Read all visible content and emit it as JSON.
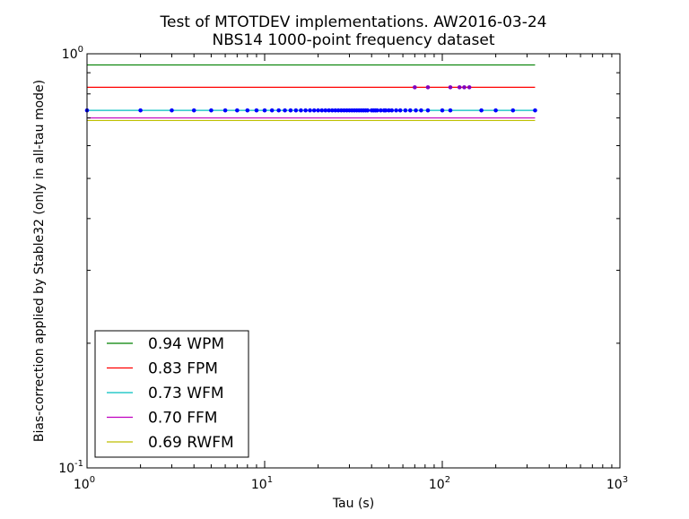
{
  "chart_data": {
    "type": "line",
    "title": "Test of MTOTDEV implementations. AW2016-03-24",
    "subtitle": "NBS14 1000-point frequency dataset",
    "xlabel": "Tau (s)",
    "ylabel": "Bias-correction applied by Stable32 (only in all-tau mode)",
    "xscale": "log",
    "yscale": "log",
    "xlim": [
      1,
      1000
    ],
    "ylim": [
      0.1,
      1
    ],
    "grid": false,
    "legend_placement": "lower-left",
    "x_ticks": [
      {
        "value": 1,
        "base": "10",
        "exp": "0"
      },
      {
        "value": 10,
        "base": "10",
        "exp": "1"
      },
      {
        "value": 100,
        "base": "10",
        "exp": "2"
      },
      {
        "value": 1000,
        "base": "10",
        "exp": "3"
      }
    ],
    "y_ticks": [
      {
        "value": 0.1,
        "base": "10",
        "exp": "-1"
      },
      {
        "value": 1,
        "base": "10",
        "exp": "0"
      }
    ],
    "series": [
      {
        "name": "0.94 WPM",
        "value": 0.94,
        "color": "#008000",
        "x_range": [
          1,
          333
        ]
      },
      {
        "name": "0.83 FPM",
        "value": 0.83,
        "color": "#ff0000",
        "x_range": [
          1,
          333
        ]
      },
      {
        "name": "0.73 WFM",
        "value": 0.73,
        "color": "#00bfbf",
        "x_range": [
          1,
          333
        ]
      },
      {
        "name": "0.70 FFM",
        "value": 0.7,
        "color": "#bf00bf",
        "x_range": [
          1,
          333
        ]
      },
      {
        "name": "0.69 RWFM",
        "value": 0.69,
        "color": "#bfbf00",
        "x_range": [
          1,
          333
        ]
      }
    ],
    "points": {
      "color": "#0000ff",
      "purple_color": "#8000bf",
      "purple_y": 0.83,
      "purple_x": [
        70,
        83,
        111,
        125,
        133,
        142
      ],
      "blue_y": 0.73,
      "blue_x": [
        1,
        2,
        3,
        4,
        5,
        6,
        7,
        8,
        9,
        10,
        11,
        12,
        13,
        14,
        15,
        16,
        17,
        18,
        19,
        20,
        21,
        22,
        23,
        24,
        25,
        26,
        27,
        28,
        29,
        30,
        31,
        32,
        33,
        34,
        35,
        36,
        37,
        38,
        40,
        41,
        42,
        43,
        45,
        47,
        48,
        50,
        52,
        55,
        58,
        62,
        66,
        71,
        76,
        83,
        100,
        111,
        166,
        200,
        250,
        333
      ]
    }
  }
}
